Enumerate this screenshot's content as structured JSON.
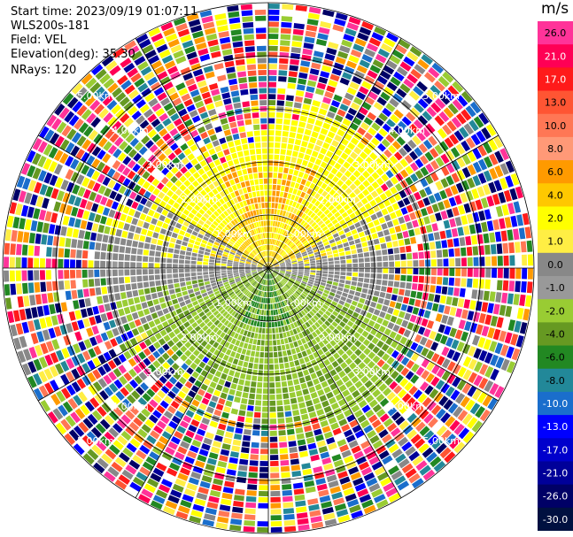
{
  "header": {
    "start_time": "Start time: 2023/09/19 01:07:11",
    "instrument": "WLS200s-181",
    "field": "Field: VEL",
    "elevation": "Elevation(deg): 35.30",
    "nrays": "NRays: 120"
  },
  "colorbar": {
    "unit": "m/s",
    "levels": [
      {
        "label": "26.0",
        "color": "#ff3399"
      },
      {
        "label": "21.0",
        "color": "#ff0055"
      },
      {
        "label": "17.0",
        "color": "#ff1a1a"
      },
      {
        "label": "13.0",
        "color": "#ff5533"
      },
      {
        "label": "10.0",
        "color": "#ff7755"
      },
      {
        "label": "8.0",
        "color": "#ff9977"
      },
      {
        "label": "6.0",
        "color": "#ff9a00"
      },
      {
        "label": "4.0",
        "color": "#ffc800"
      },
      {
        "label": "2.0",
        "color": "#ffff00"
      },
      {
        "label": "1.0",
        "color": "#ffee44"
      },
      {
        "label": "0.0",
        "color": "#888888"
      },
      {
        "label": "-1.0",
        "color": "#999999"
      },
      {
        "label": "-2.0",
        "color": "#99cc33"
      },
      {
        "label": "-4.0",
        "color": "#669922"
      },
      {
        "label": "-6.0",
        "color": "#228822"
      },
      {
        "label": "-8.0",
        "color": "#228899"
      },
      {
        "label": "-10.0",
        "color": "#1a6ecc"
      },
      {
        "label": "-13.0",
        "color": "#0000ff"
      },
      {
        "label": "-17.0",
        "color": "#0000cc"
      },
      {
        "label": "-21.0",
        "color": "#000099"
      },
      {
        "label": "-26.0",
        "color": "#000066"
      },
      {
        "label": "-30.0",
        "color": "#001040"
      }
    ]
  },
  "chart_data": {
    "type": "heatmap",
    "nrays": 120,
    "range_rings": [
      "1.00km",
      "2.00km",
      "3.00km",
      "4.00km",
      "5.00km"
    ],
    "unit": "m/s"
  }
}
